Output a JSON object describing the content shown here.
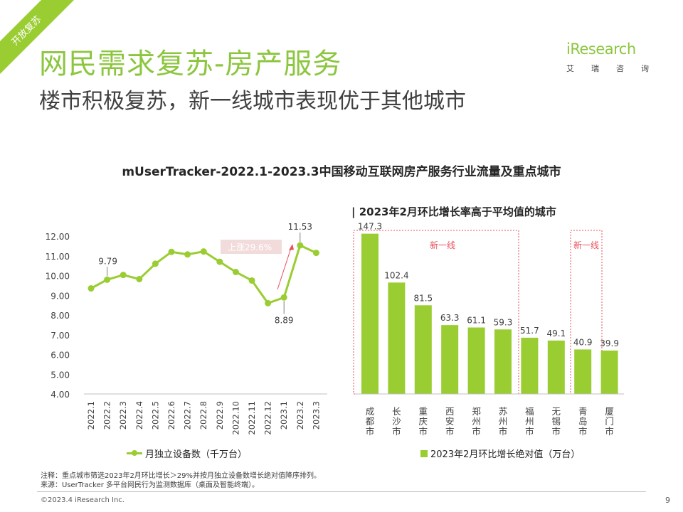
{
  "header": {
    "corner_tag": "开放复苏",
    "title": "网民需求复苏-房产服务",
    "subtitle": "楼市积极复苏，新一线城市表现优于其他城市"
  },
  "brand": {
    "name": "iResearch",
    "sub_chars": [
      "艾",
      "瑞",
      "咨",
      "询"
    ]
  },
  "chart_title": "mUserTracker-2022.1-2023.3中国移动互联网房产服务行业流量及重点城市",
  "right_panel_title": "| 2023年2月环比增长率高于平均值的城市",
  "legend": {
    "line": "月独立设备数（千万台）",
    "bar": "2023年2月环比增长绝对值（万台）"
  },
  "annotations": {
    "rise_label": "上涨29.6%",
    "group_label_1": "新一线",
    "group_label_2": "新一线"
  },
  "footer": {
    "note": "注释：重点城市筛选2023年2月环比增长＞29%并按月独立设备数增长绝对值降序排列。",
    "source": "来源：UserTracker 多平台网民行为监测数据库（桌面及智能终端）。",
    "copyright": "©2023.4 iResearch Inc.",
    "page_number": "9"
  },
  "colors": {
    "accent": "#8CC63F",
    "series": "#9ACD32",
    "annotation_red": "#E8505B"
  },
  "chart_data": [
    {
      "type": "line",
      "x": [
        "2022.1",
        "2022.2",
        "2022.3",
        "2022.4",
        "2022.5",
        "2022.6",
        "2022.7",
        "2022.8",
        "2022.9",
        "2022.10",
        "2022.11",
        "2022.12",
        "2023.1",
        "2023.2",
        "2023.3"
      ],
      "series": [
        {
          "name": "月独立设备数（千万台）",
          "values": [
            9.35,
            9.79,
            10.03,
            9.82,
            10.6,
            11.2,
            11.07,
            11.22,
            10.7,
            10.18,
            9.75,
            8.6,
            8.89,
            11.53,
            11.15
          ]
        }
      ],
      "data_labels": {
        "1": "9.79",
        "12": "8.89",
        "13": "11.53"
      },
      "y_ticks": [
        "12.00",
        "11.00",
        "10.00",
        "9.00",
        "8.00",
        "7.00",
        "6.00",
        "5.00",
        "4.00"
      ],
      "ylim": [
        4,
        12
      ],
      "grid": false
    },
    {
      "type": "bar",
      "categories": [
        "成都市",
        "长沙市",
        "重庆市",
        "西安市",
        "郑州市",
        "苏州市",
        "福州市",
        "无锡市",
        "青岛市",
        "厦门市"
      ],
      "series": [
        {
          "name": "2023年2月环比增长绝对值（万台）",
          "values": [
            147.3,
            102.4,
            81.5,
            63.3,
            61.1,
            59.3,
            51.7,
            49.1,
            40.9,
            39.9
          ]
        }
      ],
      "value_labels": [
        "147.3",
        "102.4",
        "81.5",
        "63.3",
        "61.1",
        "59.3",
        "51.7",
        "49.1",
        "40.9",
        "39.9"
      ],
      "grid": false
    }
  ]
}
